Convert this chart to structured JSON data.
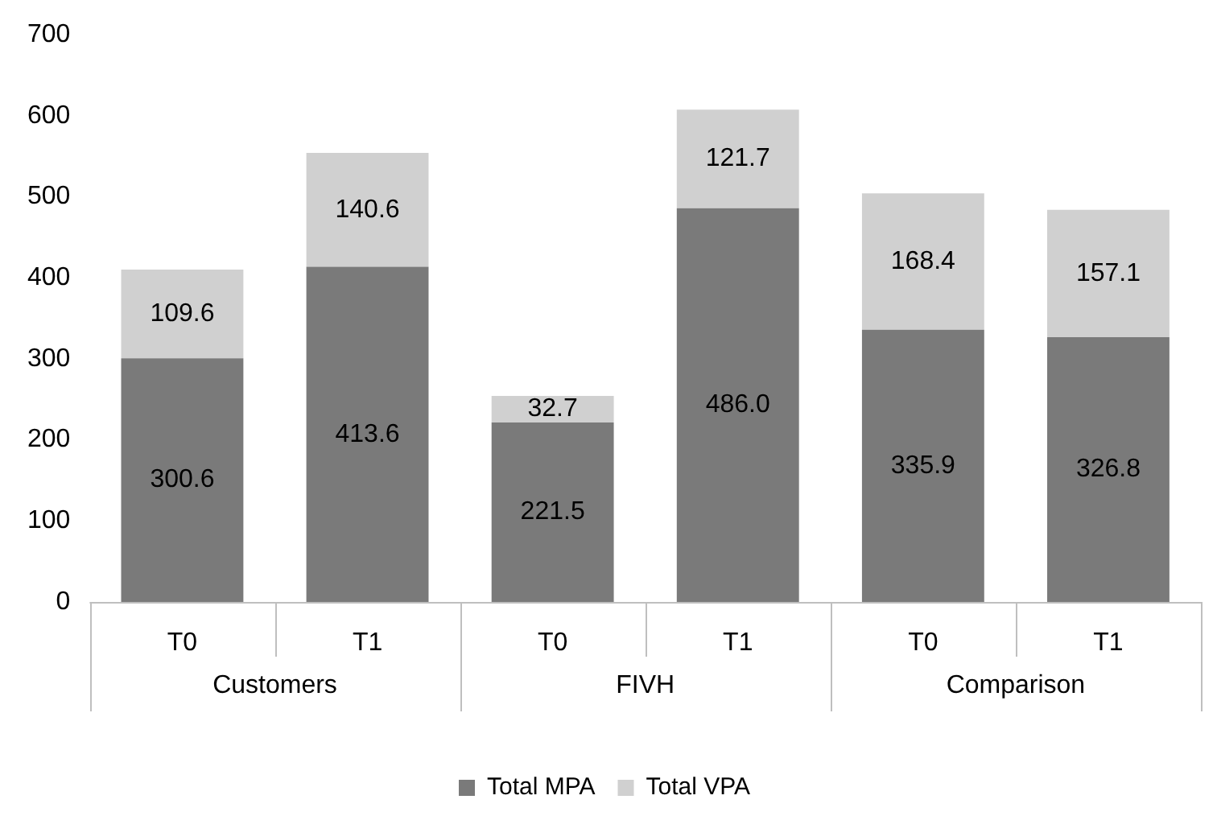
{
  "chart_data": {
    "type": "bar",
    "stacked": true,
    "categories": [
      "T0",
      "T1",
      "T0",
      "T1",
      "T0",
      "T1"
    ],
    "series": [
      {
        "name": "Total MPA",
        "color": "#7a7a7a",
        "values": [
          300.6,
          413.6,
          221.5,
          486.0,
          335.9,
          326.8
        ],
        "value_labels": [
          "300.6",
          "413.6",
          "221.5",
          "486.0",
          "335.9",
          "326.8"
        ]
      },
      {
        "name": "Total VPA",
        "color": "#d0d0d0",
        "values": [
          109.6,
          140.6,
          32.7,
          121.7,
          168.4,
          157.1
        ],
        "value_labels": [
          "109.6",
          "140.6",
          "32.7",
          "121.7",
          "168.4",
          "157.1"
        ]
      }
    ],
    "ylim": [
      0,
      700
    ],
    "yticks": [
      0,
      100,
      200,
      300,
      400,
      500,
      600,
      700
    ],
    "grid": false,
    "legend": "bottom",
    "annotations": [
      "Customers",
      "FIVH",
      "Comparison"
    ]
  }
}
